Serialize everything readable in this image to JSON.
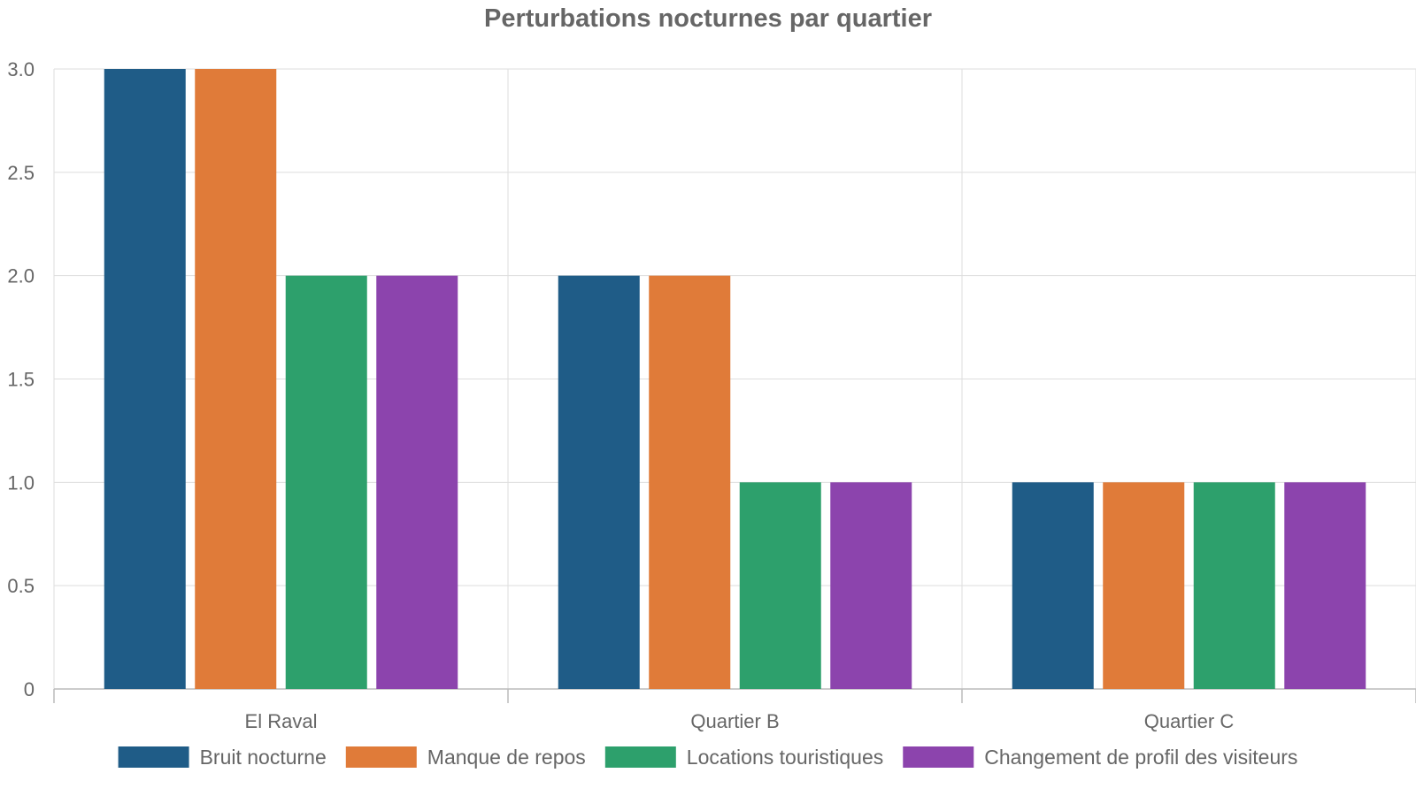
{
  "chart_data": {
    "type": "bar",
    "title": "Perturbations nocturnes par quartier",
    "xlabel": "",
    "ylabel": "",
    "categories": [
      "El Raval",
      "Quartier B",
      "Quartier C"
    ],
    "series": [
      {
        "name": "Bruit nocturne",
        "color": "#1f5c87",
        "values": [
          3,
          2,
          1
        ]
      },
      {
        "name": "Manque de repos",
        "color": "#e07b39",
        "values": [
          3,
          2,
          1
        ]
      },
      {
        "name": "Locations touristiques",
        "color": "#2da06c",
        "values": [
          2,
          1,
          1
        ]
      },
      {
        "name": "Changement de profil des visiteurs",
        "color": "#8c44ad",
        "values": [
          2,
          1,
          1
        ]
      }
    ],
    "ylim": [
      0,
      3
    ],
    "yticks": [
      0,
      0.5,
      1,
      1.5,
      2,
      2.5,
      3
    ],
    "ytick_labels": [
      "0",
      "0.5",
      "1.0",
      "1.5",
      "2.0",
      "2.5",
      "3.0"
    ],
    "grid": true,
    "legend_position": "bottom"
  }
}
